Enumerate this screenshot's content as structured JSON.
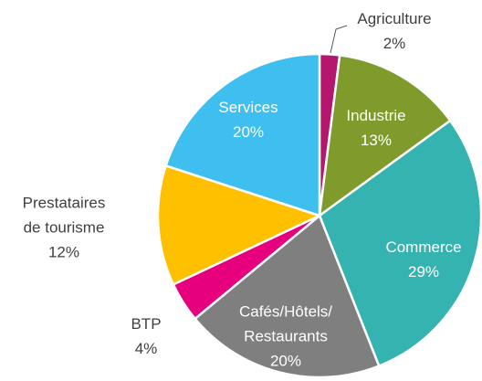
{
  "chart_data": {
    "type": "pie",
    "categories": [
      "Agriculture",
      "Industrie",
      "Commerce",
      "Cafés/Hôtels/\nRestaurants",
      "BTP",
      "Prestataires\nde tourisme",
      "Services"
    ],
    "values": [
      2,
      13,
      29,
      20,
      4,
      12,
      20
    ],
    "value_labels": [
      "2%",
      "13%",
      "29%",
      "20%",
      "4%",
      "12%",
      "20%"
    ],
    "colors": [
      "#b5176e",
      "#7f9b2b",
      "#35b3b0",
      "#7f7f7f",
      "#e6007e",
      "#ffc000",
      "#3fbfef"
    ]
  }
}
